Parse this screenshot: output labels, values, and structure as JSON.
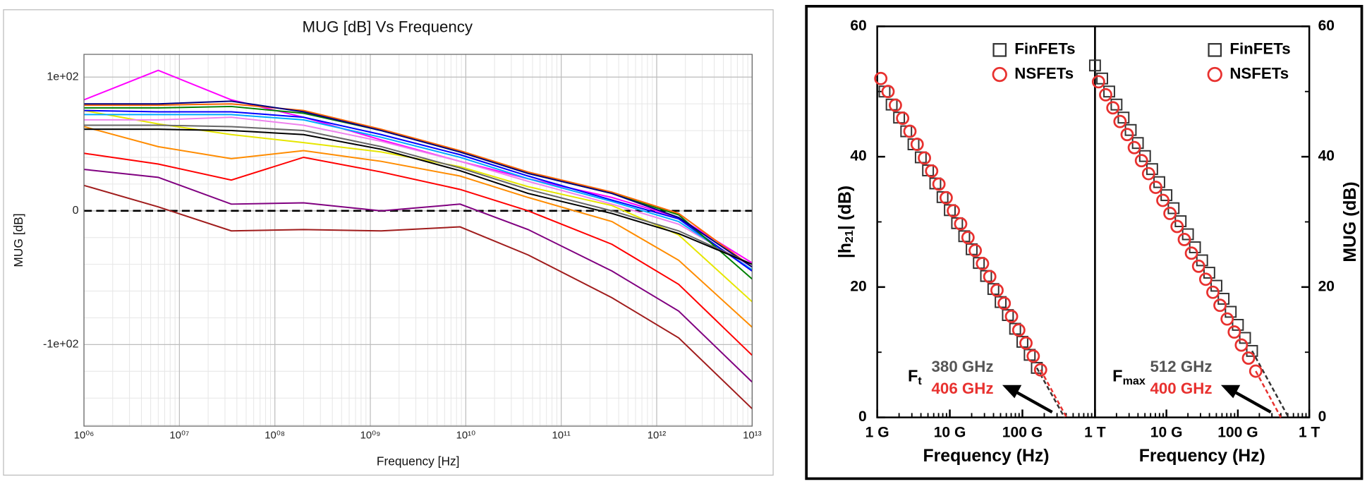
{
  "chart_data": [
    {
      "type": "line",
      "title": "MUG [dB] Vs Frequency",
      "xlabel": "Frequency [Hz]",
      "ylabel": "MUG [dB]",
      "xscale": "log",
      "xlim": [
        1000000,
        10000000000000
      ],
      "ylim": [
        -161,
        117
      ],
      "grid": true,
      "xticks": [
        {
          "value": 1000000,
          "label": "10⁰⁶"
        },
        {
          "value": 10000000,
          "label": "10⁰⁷"
        },
        {
          "value": 100000000,
          "label": "10⁰⁸"
        },
        {
          "value": 1000000000,
          "label": "10⁰⁹"
        },
        {
          "value": 10000000000,
          "label": "10¹⁰"
        },
        {
          "value": 100000000000,
          "label": "10¹¹"
        },
        {
          "value": 1000000000000,
          "label": "10¹²"
        },
        {
          "value": 10000000000000,
          "label": "10¹³"
        }
      ],
      "yticks": [
        {
          "value": -100,
          "label": "-1e+02"
        },
        0,
        {
          "value": 100,
          "label": "1e+02"
        }
      ],
      "reference_line": 0,
      "x": [
        1000000,
        6000000,
        35000000,
        200000000,
        1300000000,
        8700000000,
        45000000000,
        340000000000,
        1700000000000,
        10000000000000
      ],
      "series": [
        {
          "color": "#ff00ff",
          "values": [
            83,
            105,
            83,
            70,
            53,
            37,
            24,
            10,
            -5,
            -39
          ]
        },
        {
          "color": "#e6e600",
          "values": [
            75,
            65,
            57,
            51,
            44,
            33,
            18,
            4,
            -18,
            -68
          ]
        },
        {
          "color": "#ff8c00",
          "values": [
            63,
            48,
            39,
            45,
            37,
            26,
            10,
            -8,
            -37,
            -87
          ]
        },
        {
          "color": "#ff0000",
          "values": [
            43,
            35,
            23,
            40,
            29,
            16,
            0,
            -25,
            -55,
            -108
          ]
        },
        {
          "color": "#800080",
          "values": [
            31,
            25,
            5,
            6,
            0,
            5,
            -14,
            -45,
            -75,
            -128
          ]
        },
        {
          "color": "#a01c1c",
          "values": [
            19,
            3,
            -15,
            -14,
            -15,
            -12,
            -33,
            -65,
            -95,
            -148
          ]
        },
        {
          "color": "#ee82ee",
          "values": [
            68,
            68,
            70,
            64,
            52,
            37,
            22,
            5,
            -10,
            -42
          ]
        },
        {
          "color": "#00aaff",
          "values": [
            72,
            72,
            72,
            68,
            55,
            40,
            24,
            7,
            -8,
            -44
          ]
        },
        {
          "color": "#0000ff",
          "values": [
            75,
            74,
            74,
            70,
            57,
            42,
            26,
            8,
            -6,
            -45
          ]
        },
        {
          "color": "#008000",
          "values": [
            77,
            77,
            78,
            73,
            60,
            44,
            28,
            13,
            -3,
            -51
          ]
        },
        {
          "color": "#ff6600",
          "values": [
            79,
            79,
            80,
            75,
            61,
            45,
            29,
            14,
            -2,
            -42
          ]
        },
        {
          "color": "#000080",
          "values": [
            80,
            80,
            82,
            74,
            60,
            44,
            28,
            13,
            -5,
            -42
          ]
        },
        {
          "color": "#666666",
          "values": [
            64,
            64,
            63,
            60,
            48,
            32,
            16,
            0,
            -15,
            -40
          ]
        },
        {
          "color": "#000000",
          "values": [
            61,
            61,
            60,
            57,
            46,
            30,
            13,
            -2,
            -17,
            -40
          ]
        }
      ]
    },
    {
      "type": "scatter",
      "xlabel": "Frequency (Hz)",
      "ylabel": {
        "text": "|h",
        "subscript": "21",
        "suffix": "| (dB)"
      },
      "xscale": "log",
      "xlim": [
        1000000000,
        1000000000000
      ],
      "ylim": [
        0,
        60
      ],
      "yaxis_side": "left",
      "legend": "upper right",
      "xticks": [
        {
          "value": 1000000000,
          "label": "1 G"
        },
        {
          "value": 10000000000,
          "label": "10 G"
        },
        {
          "value": 100000000000,
          "label": "100 G"
        },
        {
          "value": 1000000000000,
          "label": "1 T"
        }
      ],
      "yticks": [
        0,
        20,
        40,
        60
      ],
      "series": [
        {
          "name": "FinFETs",
          "color": "#333333",
          "marker": "square",
          "x": [
            1260000000,
            1580000000,
            2000000000,
            2510000000,
            3160000000,
            3980000000,
            5010000000,
            6310000000,
            7940000000,
            10000000000,
            12600000000,
            15800000000,
            20000000000,
            25100000000,
            31600000000,
            39800000000,
            50100000000,
            63100000000,
            79400000000,
            100000000000,
            126000000000,
            158000000000
          ],
          "values": [
            50,
            48,
            46,
            43.9,
            41.9,
            39.9,
            37.9,
            35.9,
            33.8,
            31.8,
            29.8,
            27.8,
            25.8,
            23.7,
            21.7,
            19.7,
            17.7,
            15.7,
            13.6,
            11.6,
            9.6,
            7.6
          ],
          "extrapolation": {
            "x": [
              158000000000,
              380000000000
            ],
            "values": [
              7.6,
              0
            ]
          }
        },
        {
          "name": "NSFETs",
          "color": "#e8312f",
          "marker": "circle",
          "x": [
            1120000000,
            1410000000,
            1780000000,
            2240000000,
            2820000000,
            3550000000,
            4470000000,
            5620000000,
            7080000000,
            8910000000,
            11200000000,
            14100000000,
            17800000000,
            22400000000,
            28200000000,
            35500000000,
            44700000000,
            56200000000,
            70800000000,
            89100000000,
            112000000000,
            141000000000,
            178000000000
          ],
          "values": [
            52,
            50,
            47.9,
            45.9,
            43.9,
            41.9,
            39.8,
            37.8,
            35.8,
            33.7,
            31.7,
            29.7,
            27.6,
            25.6,
            23.6,
            21.6,
            19.5,
            17.5,
            15.5,
            13.4,
            11.4,
            9.4,
            7.3
          ],
          "extrapolation": {
            "x": [
              178000000000,
              406000000000
            ],
            "values": [
              7.3,
              0
            ]
          }
        }
      ],
      "annotation": {
        "symbol": "F",
        "subscript": "t",
        "values": [
          {
            "text": "380 GHz",
            "color": "#555555"
          },
          {
            "text": "406 GHz",
            "color": "#e8312f"
          }
        ]
      }
    },
    {
      "type": "scatter",
      "xlabel": "Frequency (Hz)",
      "ylabel": "MUG (dB)",
      "xscale": "log",
      "xlim": [
        1000000000,
        1000000000000
      ],
      "ylim": [
        0,
        60
      ],
      "yaxis_side": "right",
      "legend": "upper right",
      "xticks": [
        {
          "value": 10000000000,
          "label": "10 G"
        },
        {
          "value": 100000000000,
          "label": "100 G"
        },
        {
          "value": 1000000000000,
          "label": "1 T"
        }
      ],
      "yticks": [
        0,
        20,
        40,
        60
      ],
      "series": [
        {
          "name": "FinFETs",
          "color": "#333333",
          "marker": "square",
          "x": [
            1000000000,
            1260000000,
            1580000000,
            2000000000,
            2510000000,
            3160000000,
            3980000000,
            5010000000,
            6310000000,
            7940000000,
            10000000000,
            12600000000,
            15800000000,
            20000000000,
            25100000000,
            31600000000,
            39800000000,
            50100000000,
            63100000000,
            79400000000,
            100000000000,
            126000000000,
            158000000000
          ],
          "values": [
            54,
            52,
            50,
            48,
            46,
            44.1,
            42.1,
            40.1,
            38.1,
            36.1,
            34.1,
            32.1,
            30.1,
            28.1,
            26.1,
            24.1,
            22.2,
            20.2,
            18.2,
            16.2,
            14.2,
            12.2,
            10.2
          ],
          "extrapolation": {
            "x": [
              158000000000,
              512000000000
            ],
            "values": [
              10.2,
              0
            ]
          }
        },
        {
          "name": "NSFETs",
          "color": "#e8312f",
          "marker": "circle",
          "x": [
            1120000000,
            1410000000,
            1780000000,
            2240000000,
            2820000000,
            3550000000,
            4470000000,
            5620000000,
            7080000000,
            8910000000,
            11200000000,
            14100000000,
            17800000000,
            22400000000,
            28200000000,
            35500000000,
            44700000000,
            56200000000,
            70800000000,
            89100000000,
            112000000000,
            141000000000,
            178000000000
          ],
          "values": [
            51.5,
            49.5,
            47.5,
            45.4,
            43.4,
            41.4,
            39.4,
            37.4,
            35.3,
            33.3,
            31.3,
            29.3,
            27.3,
            25.2,
            23.2,
            21.2,
            19.2,
            17.2,
            15.1,
            13.1,
            11.1,
            9.1,
            7.1
          ],
          "extrapolation": {
            "x": [
              178000000000,
              400000000000
            ],
            "values": [
              7.1,
              0
            ]
          }
        }
      ],
      "annotation": {
        "symbol": "F",
        "subscript": "max",
        "values": [
          {
            "text": "512 GHz",
            "color": "#555555"
          },
          {
            "text": "400 GHz",
            "color": "#e8312f"
          }
        ]
      }
    }
  ]
}
